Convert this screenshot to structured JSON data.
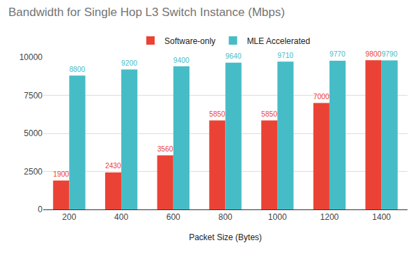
{
  "chart_data": {
    "type": "bar",
    "title": "Bandwidth for Single Hop L3 Switch Instance (Mbps)",
    "x_label": "Packet Size (Bytes)",
    "categories": [
      "200",
      "400",
      "600",
      "800",
      "1000",
      "1200",
      "1400"
    ],
    "series": [
      {
        "name": "Software-only",
        "color": "#ea4335",
        "values": [
          1900,
          2430,
          3560,
          5850,
          5850,
          7000,
          9800
        ]
      },
      {
        "name": "MLE Accelerated",
        "color": "#46bdc6",
        "values": [
          8800,
          9200,
          9400,
          9640,
          9710,
          9770,
          9790
        ]
      }
    ],
    "ylim": [
      0,
      10000
    ],
    "yticks": [
      0,
      2500,
      5000,
      7500,
      10000
    ],
    "grid": true,
    "legend": "top",
    "data_labels": true
  }
}
